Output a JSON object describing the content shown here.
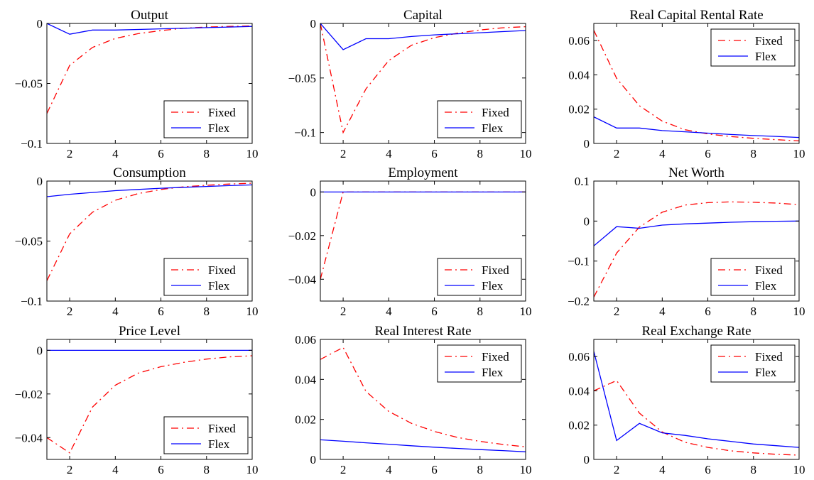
{
  "colors": {
    "fixed": "#ff0000",
    "flex": "#0000ff",
    "axis": "#000000"
  },
  "chart_data": [
    {
      "type": "line",
      "title": "Output",
      "xlim": [
        1,
        10
      ],
      "ylim": [
        -0.1,
        0
      ],
      "x": [
        1,
        2,
        3,
        4,
        5,
        6,
        7,
        8,
        9,
        10
      ],
      "xticks": [
        2,
        4,
        6,
        8,
        10
      ],
      "xtick_labels": [
        "2",
        "4",
        "6",
        "8",
        "10"
      ],
      "yticks": [
        -0.1,
        -0.05,
        0
      ],
      "ytick_labels": [
        "−0.1",
        "−0.05",
        "0"
      ],
      "legend": "bottom-right",
      "series": [
        {
          "name": "Fixed",
          "style": "dashdot",
          "values": [
            -0.075,
            -0.035,
            -0.02,
            -0.0125,
            -0.0085,
            -0.006,
            -0.004,
            -0.003,
            -0.0025,
            -0.002
          ]
        },
        {
          "name": "Flex",
          "style": "solid",
          "values": [
            0,
            -0.009,
            -0.0055,
            -0.0055,
            -0.005,
            -0.0045,
            -0.004,
            -0.0035,
            -0.003,
            -0.0025
          ]
        }
      ]
    },
    {
      "type": "line",
      "title": "Capital",
      "xlim": [
        1,
        10
      ],
      "ylim": [
        -0.11,
        0
      ],
      "x": [
        1,
        2,
        3,
        4,
        5,
        6,
        7,
        8,
        9,
        10
      ],
      "xticks": [
        2,
        4,
        6,
        8,
        10
      ],
      "xtick_labels": [
        "2",
        "4",
        "6",
        "8",
        "10"
      ],
      "yticks": [
        -0.1,
        -0.05,
        0
      ],
      "ytick_labels": [
        "−0.1",
        "−0.05",
        "0"
      ],
      "legend": "bottom-right",
      "series": [
        {
          "name": "Fixed",
          "style": "dashdot",
          "values": [
            0,
            -0.1,
            -0.06,
            -0.034,
            -0.02,
            -0.013,
            -0.009,
            -0.006,
            -0.004,
            -0.003
          ]
        },
        {
          "name": "Flex",
          "style": "solid",
          "values": [
            0,
            -0.024,
            -0.014,
            -0.014,
            -0.012,
            -0.0105,
            -0.0095,
            -0.0085,
            -0.0075,
            -0.0065
          ]
        }
      ]
    },
    {
      "type": "line",
      "title": "Real Capital Rental Rate",
      "xlim": [
        1,
        10
      ],
      "ylim": [
        0,
        0.07
      ],
      "x": [
        1,
        2,
        3,
        4,
        5,
        6,
        7,
        8,
        9,
        10
      ],
      "xticks": [
        2,
        4,
        6,
        8,
        10
      ],
      "xtick_labels": [
        "2",
        "4",
        "6",
        "8",
        "10"
      ],
      "yticks": [
        0,
        0.02,
        0.04,
        0.06
      ],
      "ytick_labels": [
        "0",
        "0.02",
        "0.04",
        "0.06"
      ],
      "legend": "top-right",
      "series": [
        {
          "name": "Fixed",
          "style": "dashdot",
          "values": [
            0.066,
            0.038,
            0.022,
            0.013,
            0.008,
            0.0055,
            0.004,
            0.003,
            0.0022,
            0.0015
          ]
        },
        {
          "name": "Flex",
          "style": "solid",
          "values": [
            0.0155,
            0.009,
            0.009,
            0.0075,
            0.0068,
            0.006,
            0.0052,
            0.0046,
            0.0041,
            0.0035
          ]
        }
      ]
    },
    {
      "type": "line",
      "title": "Consumption",
      "xlim": [
        1,
        10
      ],
      "ylim": [
        -0.1,
        0
      ],
      "x": [
        1,
        2,
        3,
        4,
        5,
        6,
        7,
        8,
        9,
        10
      ],
      "xticks": [
        2,
        4,
        6,
        8,
        10
      ],
      "xtick_labels": [
        "2",
        "4",
        "6",
        "8",
        "10"
      ],
      "yticks": [
        -0.1,
        -0.05,
        0
      ],
      "ytick_labels": [
        "−0.1",
        "−0.05",
        "0"
      ],
      "legend": "bottom-right",
      "series": [
        {
          "name": "Fixed",
          "style": "dashdot",
          "values": [
            -0.083,
            -0.044,
            -0.026,
            -0.016,
            -0.0105,
            -0.007,
            -0.0048,
            -0.0035,
            -0.0025,
            -0.0018
          ]
        },
        {
          "name": "Flex",
          "style": "solid",
          "values": [
            -0.013,
            -0.011,
            -0.0095,
            -0.008,
            -0.007,
            -0.006,
            -0.0052,
            -0.0045,
            -0.0038,
            -0.0032
          ]
        }
      ]
    },
    {
      "type": "line",
      "title": "Employment",
      "xlim": [
        1,
        10
      ],
      "ylim": [
        -0.05,
        0.005
      ],
      "x": [
        1,
        2,
        3,
        4,
        5,
        6,
        7,
        8,
        9,
        10
      ],
      "xticks": [
        2,
        4,
        6,
        8,
        10
      ],
      "xtick_labels": [
        "2",
        "4",
        "6",
        "8",
        "10"
      ],
      "yticks": [
        -0.04,
        -0.02,
        0
      ],
      "ytick_labels": [
        "−0.04",
        "−0.02",
        "0"
      ],
      "legend": "bottom-right",
      "series": [
        {
          "name": "Fixed",
          "style": "dashdot",
          "values": [
            -0.04,
            0,
            0,
            0,
            0,
            0,
            0,
            0,
            0,
            0
          ]
        },
        {
          "name": "Flex",
          "style": "solid",
          "values": [
            0,
            0,
            0,
            0,
            0,
            0,
            0,
            0,
            0,
            0
          ]
        }
      ]
    },
    {
      "type": "line",
      "title": "Net Worth",
      "xlim": [
        1,
        10
      ],
      "ylim": [
        -0.2,
        0.1
      ],
      "x": [
        1,
        2,
        3,
        4,
        5,
        6,
        7,
        8,
        9,
        10
      ],
      "xticks": [
        2,
        4,
        6,
        8,
        10
      ],
      "xtick_labels": [
        "2",
        "4",
        "6",
        "8",
        "10"
      ],
      "yticks": [
        -0.2,
        -0.1,
        0,
        0.1
      ],
      "ytick_labels": [
        "−0.2",
        "−0.1",
        "0",
        "0.1"
      ],
      "legend": "bottom-right",
      "series": [
        {
          "name": "Fixed",
          "style": "dashdot",
          "values": [
            -0.19,
            -0.08,
            -0.015,
            0.022,
            0.04,
            0.046,
            0.048,
            0.047,
            0.045,
            0.041
          ]
        },
        {
          "name": "Flex",
          "style": "solid",
          "values": [
            -0.062,
            -0.014,
            -0.018,
            -0.01,
            -0.007,
            -0.005,
            -0.003,
            -0.0015,
            -0.0005,
            0
          ]
        }
      ]
    },
    {
      "type": "line",
      "title": "Price Level",
      "xlim": [
        1,
        10
      ],
      "ylim": [
        -0.05,
        0.005
      ],
      "x": [
        1,
        2,
        3,
        4,
        5,
        6,
        7,
        8,
        9,
        10
      ],
      "xticks": [
        2,
        4,
        6,
        8,
        10
      ],
      "xtick_labels": [
        "2",
        "4",
        "6",
        "8",
        "10"
      ],
      "yticks": [
        -0.04,
        -0.02,
        0
      ],
      "ytick_labels": [
        "−0.04",
        "−0.02",
        "0"
      ],
      "legend": "bottom-right",
      "series": [
        {
          "name": "Fixed",
          "style": "dashdot",
          "values": [
            -0.04,
            -0.047,
            -0.026,
            -0.016,
            -0.0105,
            -0.0075,
            -0.0055,
            -0.004,
            -0.003,
            -0.0025
          ]
        },
        {
          "name": "Flex",
          "style": "solid",
          "values": [
            0,
            0,
            0,
            0,
            0,
            0,
            0,
            0,
            0,
            0
          ]
        }
      ]
    },
    {
      "type": "line",
      "title": "Real Interest Rate",
      "xlim": [
        1,
        10
      ],
      "ylim": [
        0,
        0.06
      ],
      "x": [
        1,
        2,
        3,
        4,
        5,
        6,
        7,
        8,
        9,
        10
      ],
      "xticks": [
        2,
        4,
        6,
        8,
        10
      ],
      "xtick_labels": [
        "2",
        "4",
        "6",
        "8",
        "10"
      ],
      "yticks": [
        0,
        0.02,
        0.04,
        0.06
      ],
      "ytick_labels": [
        "0",
        "0.02",
        "0.04",
        "0.06"
      ],
      "legend": "top-right",
      "series": [
        {
          "name": "Fixed",
          "style": "dashdot",
          "values": [
            0.05,
            0.056,
            0.034,
            0.024,
            0.018,
            0.014,
            0.011,
            0.009,
            0.0075,
            0.0063
          ]
        },
        {
          "name": "Flex",
          "style": "solid",
          "values": [
            0.0098,
            0.0091,
            0.0083,
            0.0076,
            0.0068,
            0.0061,
            0.0055,
            0.0049,
            0.0044,
            0.0038
          ]
        }
      ]
    },
    {
      "type": "line",
      "title": "Real Exchange Rate",
      "xlim": [
        1,
        10
      ],
      "ylim": [
        0,
        0.07
      ],
      "x": [
        1,
        2,
        3,
        4,
        5,
        6,
        7,
        8,
        9,
        10
      ],
      "xticks": [
        2,
        4,
        6,
        8,
        10
      ],
      "xtick_labels": [
        "2",
        "4",
        "6",
        "8",
        "10"
      ],
      "yticks": [
        0,
        0.02,
        0.04,
        0.06
      ],
      "ytick_labels": [
        "0",
        "0.02",
        "0.04",
        "0.06"
      ],
      "legend": "top-right",
      "series": [
        {
          "name": "Fixed",
          "style": "dashdot",
          "values": [
            0.04,
            0.046,
            0.027,
            0.016,
            0.01,
            0.007,
            0.005,
            0.0038,
            0.003,
            0.0025
          ]
        },
        {
          "name": "Flex",
          "style": "solid",
          "values": [
            0.063,
            0.011,
            0.021,
            0.0155,
            0.014,
            0.012,
            0.0105,
            0.009,
            0.008,
            0.007
          ]
        }
      ]
    }
  ]
}
